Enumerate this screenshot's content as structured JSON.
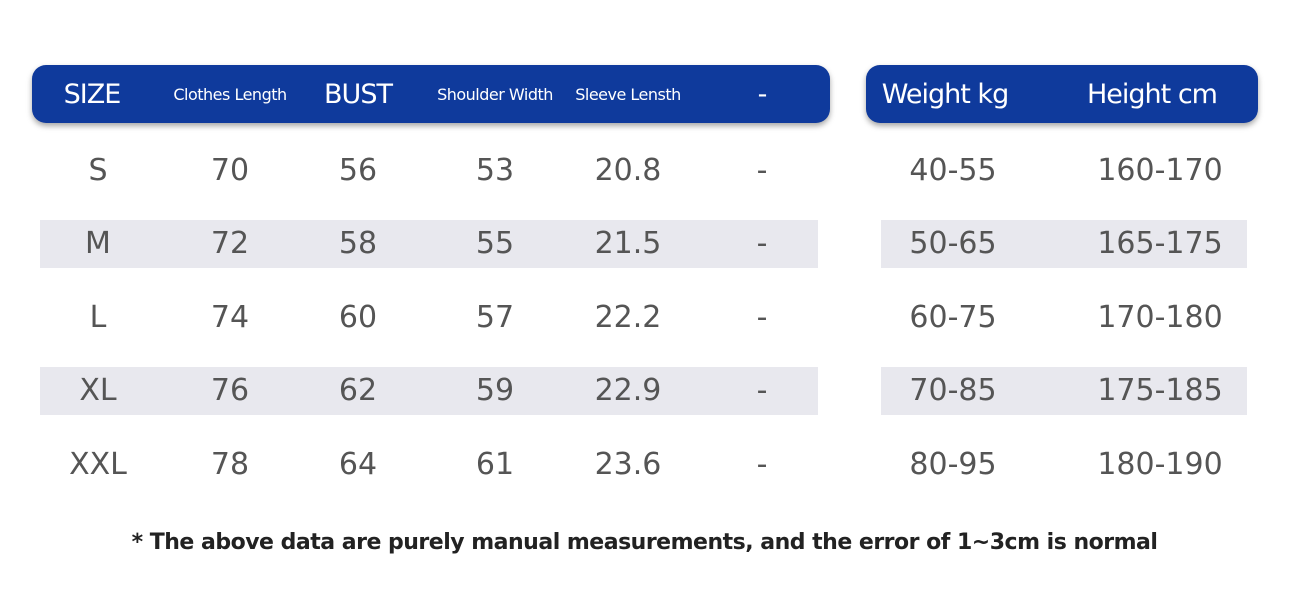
{
  "colors": {
    "header": "#0f3a9c",
    "band": "#e8e8ee"
  },
  "left_headers": [
    "SIZE",
    "Clothes Length",
    "BUST",
    "Shoulder Width",
    "Sleeve Lensth",
    "-"
  ],
  "right_headers": [
    "Weight kg",
    "Height cm"
  ],
  "rows": [
    [
      "S",
      "70",
      "56",
      "53",
      "20.8",
      "-",
      "40-55",
      "160-170"
    ],
    [
      "M",
      "72",
      "58",
      "55",
      "21.5",
      "-",
      "50-65",
      "165-175"
    ],
    [
      "L",
      "74",
      "60",
      "57",
      "22.2",
      "-",
      "60-75",
      "170-180"
    ],
    [
      "XL",
      "76",
      "62",
      "59",
      "22.9",
      "-",
      "70-85",
      "175-185"
    ],
    [
      "XXL",
      "78",
      "64",
      "61",
      "23.6",
      "-",
      "80-95",
      "180-190"
    ]
  ],
  "note": "* The above data are purely manual measurements, and the error of 1~3cm is normal"
}
